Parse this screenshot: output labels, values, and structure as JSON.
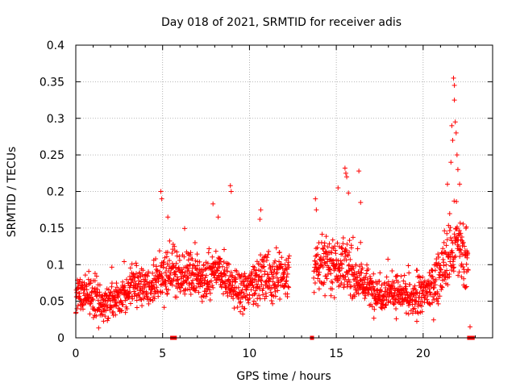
{
  "chart_data": {
    "type": "scatter",
    "title": "Day 018 of 2021, SRMTID for receiver adis",
    "xlabel": "GPS time / hours",
    "ylabel": "SRMTID / TECUs",
    "xlim": [
      0,
      24
    ],
    "ylim": [
      0,
      0.4
    ],
    "xticks": [
      0,
      5,
      10,
      15,
      20
    ],
    "xtick_labels": [
      "0",
      "5",
      "10",
      "15",
      "20"
    ],
    "yticks": [
      0,
      0.05,
      0.1,
      0.15,
      0.2,
      0.25,
      0.3,
      0.35,
      0.4
    ],
    "ytick_labels": [
      "0",
      "0.05",
      "0.1",
      "0.15",
      "0.2",
      "0.25",
      "0.3",
      "0.35",
      "0.4"
    ],
    "grid": true,
    "marker": "+",
    "marker_color": "#ff0000",
    "series": [
      {
        "name": "SRMTID",
        "profile_hours": [
          0,
          0.5,
          1.0,
          1.5,
          2.0,
          2.5,
          3.0,
          3.5,
          4.0,
          4.5,
          5.0,
          5.5,
          6.0,
          6.5,
          7.0,
          7.5,
          8.0,
          8.5,
          9.0,
          9.5,
          10.0,
          10.5,
          11.0,
          11.5,
          12.0,
          12.3,
          13.7,
          14.0,
          14.5,
          15.0,
          15.5,
          16.0,
          16.5,
          17.0,
          17.5,
          18.0,
          18.5,
          19.0,
          19.5,
          20.0,
          20.5,
          21.0,
          21.5,
          22.0,
          22.5
        ],
        "profile_center": [
          0.055,
          0.06,
          0.055,
          0.045,
          0.05,
          0.055,
          0.06,
          0.075,
          0.065,
          0.075,
          0.085,
          0.09,
          0.085,
          0.09,
          0.08,
          0.075,
          0.09,
          0.085,
          0.07,
          0.06,
          0.07,
          0.08,
          0.085,
          0.08,
          0.085,
          0.08,
          0.09,
          0.1,
          0.105,
          0.1,
          0.095,
          0.085,
          0.075,
          0.065,
          0.06,
          0.065,
          0.06,
          0.055,
          0.05,
          0.06,
          0.07,
          0.09,
          0.11,
          0.125,
          0.1
        ],
        "profile_spread": [
          0.02,
          0.02,
          0.02,
          0.02,
          0.02,
          0.02,
          0.02,
          0.025,
          0.02,
          0.025,
          0.025,
          0.025,
          0.025,
          0.025,
          0.025,
          0.025,
          0.025,
          0.025,
          0.02,
          0.02,
          0.025,
          0.025,
          0.025,
          0.025,
          0.025,
          0.025,
          0.03,
          0.03,
          0.03,
          0.03,
          0.03,
          0.025,
          0.02,
          0.02,
          0.02,
          0.02,
          0.02,
          0.02,
          0.02,
          0.02,
          0.025,
          0.03,
          0.04,
          0.04,
          0.03
        ],
        "extra_points": [
          [
            4.9,
            0.2
          ],
          [
            4.95,
            0.19
          ],
          [
            5.3,
            0.165
          ],
          [
            7.9,
            0.183
          ],
          [
            8.2,
            0.165
          ],
          [
            8.9,
            0.208
          ],
          [
            8.95,
            0.2
          ],
          [
            10.6,
            0.162
          ],
          [
            10.65,
            0.175
          ],
          [
            13.8,
            0.19
          ],
          [
            13.85,
            0.175
          ],
          [
            15.1,
            0.205
          ],
          [
            15.5,
            0.232
          ],
          [
            15.55,
            0.225
          ],
          [
            15.6,
            0.22
          ],
          [
            15.7,
            0.198
          ],
          [
            16.3,
            0.228
          ],
          [
            16.4,
            0.185
          ],
          [
            21.4,
            0.21
          ],
          [
            21.6,
            0.24
          ],
          [
            21.65,
            0.29
          ],
          [
            21.7,
            0.27
          ],
          [
            21.75,
            0.355
          ],
          [
            21.8,
            0.345
          ],
          [
            21.8,
            0.325
          ],
          [
            21.85,
            0.295
          ],
          [
            21.9,
            0.28
          ],
          [
            21.95,
            0.25
          ],
          [
            22.0,
            0.23
          ],
          [
            22.1,
            0.21
          ],
          [
            22.5,
            0.07
          ],
          [
            22.7,
            0.015
          ]
        ],
        "zero_points": [
          5.55,
          5.7,
          13.6,
          22.65,
          22.85
        ]
      }
    ]
  }
}
